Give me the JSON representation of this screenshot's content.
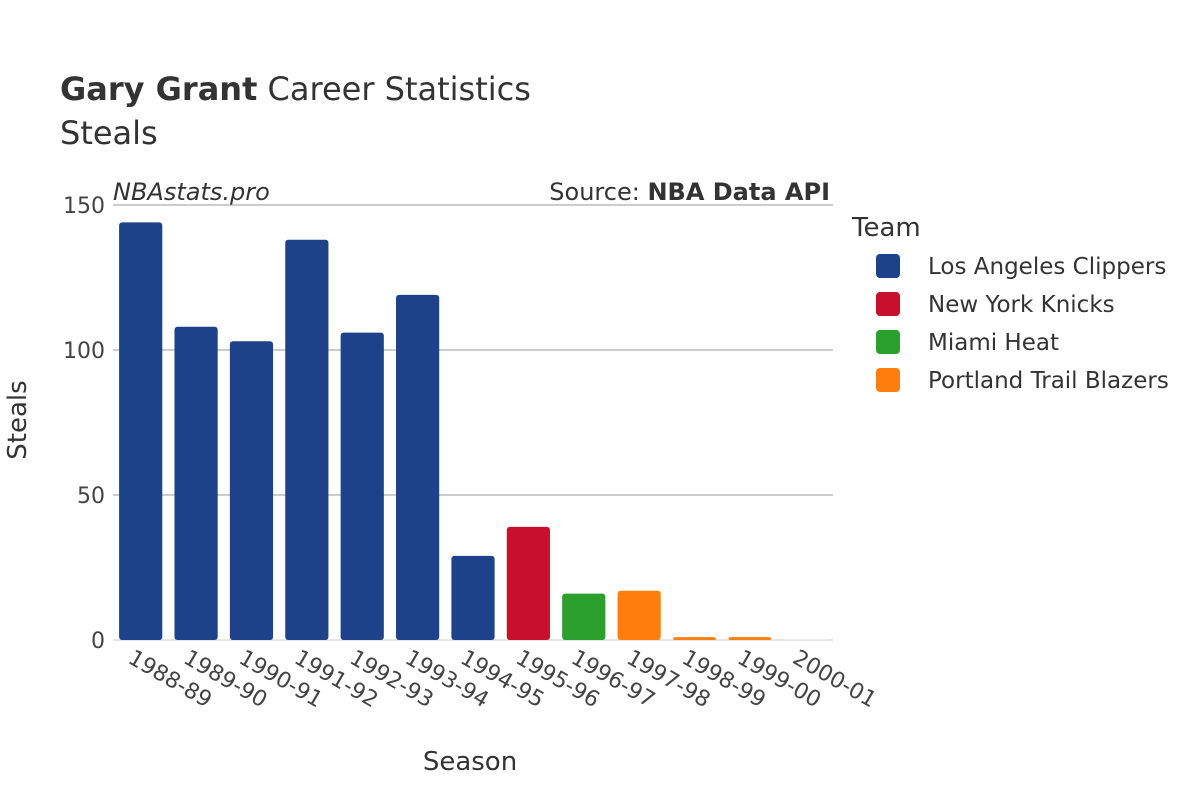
{
  "header": {
    "title_bold": "Gary Grant",
    "title_rest": " Career Statistics",
    "subtitle": "Steals"
  },
  "watermark": "NBAstats.pro",
  "source": {
    "prefix": "Source: ",
    "name": "NBA Data API"
  },
  "chart_data": {
    "type": "bar",
    "xlabel": "Season",
    "ylabel": "Steals",
    "ylim": [
      0,
      150
    ],
    "yticks": [
      0,
      50,
      100,
      150
    ],
    "grid": true,
    "legend_title": "Team",
    "legend_position": "right",
    "categories": [
      "1988-89",
      "1989-90",
      "1990-91",
      "1991-92",
      "1992-93",
      "1993-94",
      "1994-95",
      "1995-96",
      "1996-97",
      "1997-98",
      "1998-99",
      "1999-00",
      "2000-01"
    ],
    "values": [
      144,
      108,
      103,
      138,
      106,
      119,
      29,
      39,
      16,
      17,
      1,
      1,
      0
    ],
    "teams": [
      "Los Angeles Clippers",
      "Los Angeles Clippers",
      "Los Angeles Clippers",
      "Los Angeles Clippers",
      "Los Angeles Clippers",
      "Los Angeles Clippers",
      "Los Angeles Clippers",
      "New York Knicks",
      "Miami Heat",
      "Portland Trail Blazers",
      "Portland Trail Blazers",
      "Portland Trail Blazers",
      "Portland Trail Blazers"
    ],
    "series": [
      {
        "name": "Los Angeles Clippers",
        "color": "#1d428a"
      },
      {
        "name": "New York Knicks",
        "color": "#c8102e"
      },
      {
        "name": "Miami Heat",
        "color": "#2ca02c"
      },
      {
        "name": "Portland Trail Blazers",
        "color": "#ff7f0e"
      }
    ]
  }
}
